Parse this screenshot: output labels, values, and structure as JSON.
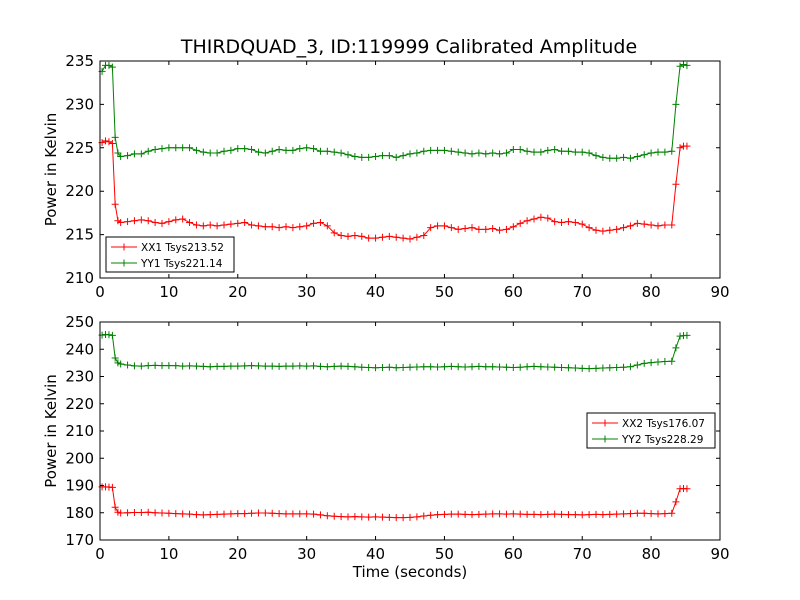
{
  "title": "THIRDQUAD_3, ID:119999 Calibrated Amplitude",
  "colors": {
    "xx": "#ff0000",
    "yy": "#008000",
    "axis": "#000000",
    "background": "#ffffff"
  },
  "chart_data": [
    {
      "type": "line",
      "marker": "plus",
      "title": "THIRDQUAD_3, ID:119999 Calibrated Amplitude",
      "xlabel": "",
      "ylabel": "Power in Kelvin",
      "xlim": [
        0,
        90
      ],
      "ylim": [
        210,
        235
      ],
      "xticks": [
        0,
        10,
        20,
        30,
        40,
        50,
        60,
        70,
        80,
        90
      ],
      "yticks": [
        210,
        215,
        220,
        225,
        230,
        235
      ],
      "grid": false,
      "legend_position": "lower-left",
      "x": [
        0.3,
        0.8,
        1.3,
        1.8,
        2.2,
        2.6,
        3,
        4,
        5,
        6,
        7,
        8,
        9,
        10,
        11,
        12,
        13,
        14,
        15,
        16,
        17,
        18,
        19,
        20,
        21,
        22,
        23,
        24,
        25,
        26,
        27,
        28,
        29,
        30,
        31,
        32,
        33,
        34,
        35,
        36,
        37,
        38,
        39,
        40,
        41,
        42,
        43,
        44,
        45,
        46,
        47,
        48,
        49,
        50,
        51,
        52,
        53,
        54,
        55,
        56,
        57,
        58,
        59,
        60,
        61,
        62,
        63,
        64,
        65,
        66,
        67,
        68,
        69,
        70,
        71,
        72,
        73,
        74,
        75,
        76,
        77,
        78,
        79,
        80,
        81,
        82,
        83,
        83.6,
        84.2,
        84.7,
        85.2
      ],
      "series": [
        {
          "name": "XX1 Tsys213.52",
          "color": "#ff0000",
          "values": [
            225.6,
            225.8,
            225.7,
            225.5,
            218.5,
            216.6,
            216.4,
            216.5,
            216.6,
            216.7,
            216.6,
            216.4,
            216.3,
            216.5,
            216.7,
            216.8,
            216.4,
            216.1,
            216.0,
            216.1,
            216.0,
            216.1,
            216.2,
            216.3,
            216.4,
            216.1,
            216.0,
            215.9,
            215.9,
            215.8,
            215.9,
            215.8,
            215.9,
            216.0,
            216.3,
            216.4,
            216.0,
            215.2,
            214.9,
            214.8,
            214.9,
            214.8,
            214.6,
            214.6,
            214.7,
            214.8,
            214.7,
            214.6,
            214.5,
            214.7,
            214.9,
            215.8,
            216.0,
            216.0,
            215.8,
            215.6,
            215.7,
            215.8,
            215.6,
            215.6,
            215.7,
            215.5,
            215.6,
            215.9,
            216.3,
            216.6,
            216.8,
            217.0,
            216.9,
            216.5,
            216.4,
            216.5,
            216.4,
            216.2,
            215.8,
            215.5,
            215.4,
            215.5,
            215.6,
            215.8,
            216.0,
            216.3,
            216.2,
            216.1,
            216.0,
            216.1,
            216.1,
            220.8,
            225.0,
            225.2,
            225.2
          ]
        },
        {
          "name": "YY1 Tsys221.14",
          "color": "#008000",
          "values": [
            233.8,
            234.5,
            234.5,
            234.3,
            226.2,
            224.4,
            224.0,
            224.1,
            224.3,
            224.3,
            224.6,
            224.8,
            224.9,
            225.0,
            225.0,
            225.0,
            225.0,
            224.7,
            224.5,
            224.4,
            224.4,
            224.6,
            224.7,
            224.9,
            224.9,
            224.8,
            224.5,
            224.4,
            224.6,
            224.8,
            224.7,
            224.7,
            224.9,
            225.0,
            224.9,
            224.6,
            224.6,
            224.5,
            224.4,
            224.2,
            224.0,
            223.9,
            223.9,
            224.0,
            224.1,
            224.1,
            223.9,
            224.1,
            224.3,
            224.4,
            224.6,
            224.7,
            224.7,
            224.7,
            224.6,
            224.5,
            224.4,
            224.3,
            224.4,
            224.3,
            224.4,
            224.3,
            224.4,
            224.8,
            224.8,
            224.6,
            224.5,
            224.5,
            224.7,
            224.8,
            224.6,
            224.6,
            224.5,
            224.5,
            224.4,
            224.1,
            223.9,
            223.8,
            223.8,
            223.9,
            223.8,
            224.0,
            224.2,
            224.4,
            224.5,
            224.5,
            224.6,
            230.0,
            234.4,
            234.6,
            234.5
          ]
        }
      ]
    },
    {
      "type": "line",
      "marker": "plus",
      "title": "",
      "xlabel": "Time (seconds)",
      "ylabel": "Power in Kelvin",
      "xlim": [
        0,
        90
      ],
      "ylim": [
        170,
        250
      ],
      "xticks": [
        0,
        10,
        20,
        30,
        40,
        50,
        60,
        70,
        80,
        90
      ],
      "yticks": [
        170,
        180,
        190,
        200,
        210,
        220,
        230,
        240,
        250
      ],
      "grid": false,
      "legend_position": "center-right",
      "x": [
        0.3,
        0.8,
        1.3,
        1.8,
        2.2,
        2.6,
        3,
        4,
        5,
        6,
        7,
        8,
        9,
        10,
        11,
        12,
        13,
        14,
        15,
        16,
        17,
        18,
        19,
        20,
        21,
        22,
        23,
        24,
        25,
        26,
        27,
        28,
        29,
        30,
        31,
        32,
        33,
        34,
        35,
        36,
        37,
        38,
        39,
        40,
        41,
        42,
        43,
        44,
        45,
        46,
        47,
        48,
        49,
        50,
        51,
        52,
        53,
        54,
        55,
        56,
        57,
        58,
        59,
        60,
        61,
        62,
        63,
        64,
        65,
        66,
        67,
        68,
        69,
        70,
        71,
        72,
        73,
        74,
        75,
        76,
        77,
        78,
        79,
        80,
        81,
        82,
        83,
        83.6,
        84.2,
        84.7,
        85.2
      ],
      "series": [
        {
          "name": "XX2 Tsys176.07",
          "color": "#ff0000",
          "values": [
            189.5,
            189.5,
            189.4,
            189.3,
            182.0,
            180.2,
            179.9,
            180.0,
            180.1,
            180.1,
            180.2,
            180.0,
            179.9,
            179.8,
            179.7,
            179.6,
            179.5,
            179.3,
            179.2,
            179.3,
            179.4,
            179.5,
            179.6,
            179.7,
            179.7,
            179.8,
            179.9,
            179.9,
            179.8,
            179.7,
            179.6,
            179.6,
            179.6,
            179.6,
            179.5,
            179.2,
            178.9,
            178.7,
            178.6,
            178.5,
            178.6,
            178.5,
            178.4,
            178.5,
            178.4,
            178.3,
            178.2,
            178.2,
            178.3,
            178.5,
            178.8,
            179.1,
            179.3,
            179.4,
            179.5,
            179.5,
            179.4,
            179.3,
            179.4,
            179.5,
            179.6,
            179.6,
            179.5,
            179.6,
            179.5,
            179.4,
            179.4,
            179.3,
            179.4,
            179.5,
            179.4,
            179.3,
            179.3,
            179.2,
            179.3,
            179.4,
            179.3,
            179.4,
            179.5,
            179.6,
            179.7,
            179.8,
            179.8,
            179.7,
            179.6,
            179.7,
            179.8,
            184.0,
            188.8,
            188.9,
            188.8
          ]
        },
        {
          "name": "YY2 Tsys228.29",
          "color": "#008000",
          "values": [
            245.2,
            245.4,
            245.3,
            245.1,
            236.8,
            235.0,
            234.6,
            234.2,
            233.9,
            233.8,
            234.0,
            234.1,
            234.0,
            234.0,
            234.0,
            233.8,
            233.9,
            233.8,
            233.7,
            233.6,
            233.7,
            233.7,
            233.8,
            233.8,
            233.9,
            234.0,
            233.9,
            233.8,
            233.8,
            233.7,
            233.8,
            233.8,
            233.9,
            233.8,
            233.9,
            233.7,
            233.6,
            233.7,
            233.8,
            233.7,
            233.6,
            233.4,
            233.3,
            233.2,
            233.3,
            233.4,
            233.2,
            233.3,
            233.4,
            233.5,
            233.6,
            233.6,
            233.5,
            233.6,
            233.7,
            233.6,
            233.5,
            233.6,
            233.7,
            233.6,
            233.6,
            233.5,
            233.4,
            233.3,
            233.4,
            233.6,
            233.7,
            233.6,
            233.5,
            233.4,
            233.3,
            233.2,
            233.1,
            233.0,
            232.9,
            233.0,
            233.1,
            233.2,
            233.3,
            233.4,
            233.6,
            234.2,
            234.8,
            235.1,
            235.3,
            235.5,
            235.6,
            240.5,
            244.8,
            245.0,
            245.1
          ]
        }
      ]
    }
  ]
}
